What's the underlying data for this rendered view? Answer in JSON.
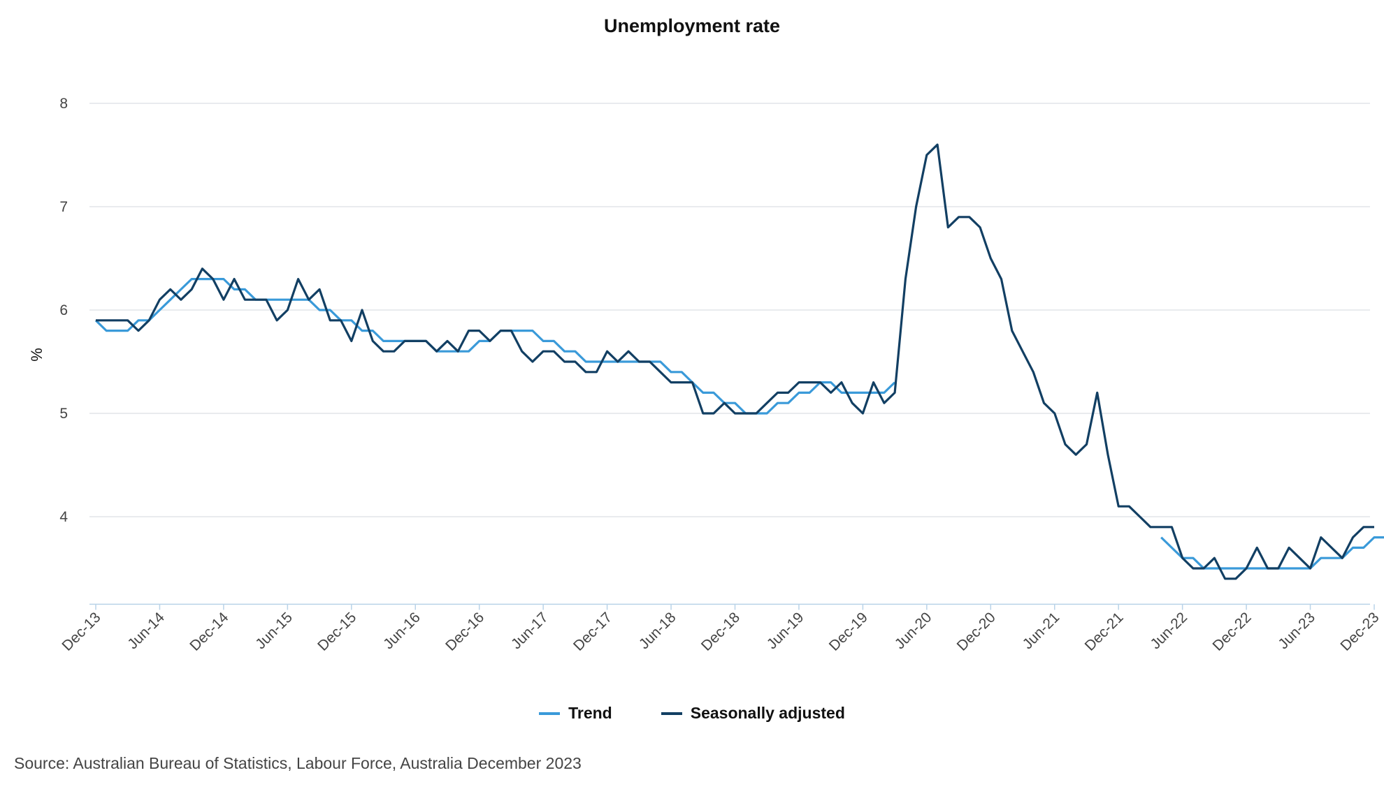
{
  "chart_data": {
    "type": "line",
    "title": "Unemployment rate",
    "xlabel": "",
    "ylabel": "%",
    "ylim": [
      3.2,
      8
    ],
    "yticks": [
      4,
      5,
      6,
      7,
      8
    ],
    "grid": true,
    "legend_position": "bottom-center",
    "x_start": "Dec-13",
    "x_end": "Dec-23",
    "x_tick_labels": [
      "Dec-13",
      "Jun-14",
      "Dec-14",
      "Jun-15",
      "Dec-15",
      "Jun-16",
      "Dec-16",
      "Jun-17",
      "Dec-17",
      "Jun-18",
      "Dec-18",
      "Jun-19",
      "Dec-19",
      "Jun-20",
      "Dec-20",
      "Jun-21",
      "Dec-21",
      "Jun-22",
      "Dec-22",
      "Jun-23",
      "Dec-23"
    ],
    "series": [
      {
        "name": "Trend",
        "color": "#3A9AD9",
        "values": [
          5.9,
          5.8,
          5.8,
          5.8,
          5.9,
          5.9,
          6.0,
          6.1,
          6.2,
          6.3,
          6.3,
          6.3,
          6.3,
          6.2,
          6.2,
          6.1,
          6.1,
          6.1,
          6.1,
          6.1,
          6.1,
          6.0,
          6.0,
          5.9,
          5.9,
          5.8,
          5.8,
          5.7,
          5.7,
          5.7,
          5.7,
          5.7,
          5.6,
          5.6,
          5.6,
          5.6,
          5.7,
          5.7,
          5.8,
          5.8,
          5.8,
          5.8,
          5.7,
          5.7,
          5.6,
          5.6,
          5.5,
          5.5,
          5.5,
          5.5,
          5.5,
          5.5,
          5.5,
          5.5,
          5.4,
          5.4,
          5.3,
          5.2,
          5.2,
          5.1,
          5.1,
          5.0,
          5.0,
          5.0,
          5.1,
          5.1,
          5.2,
          5.2,
          5.3,
          5.3,
          5.2,
          5.2,
          5.2,
          5.2,
          5.2,
          5.3,
          null,
          null,
          null,
          null,
          null,
          null,
          null,
          null,
          null,
          null,
          null,
          null,
          null,
          null,
          null,
          null,
          null,
          null,
          null,
          null,
          null,
          null,
          null,
          null,
          3.8,
          3.7,
          3.6,
          3.6,
          3.5,
          3.5,
          3.5,
          3.5,
          3.5,
          3.5,
          3.5,
          3.5,
          3.5,
          3.5,
          3.5,
          3.6,
          3.6,
          3.6,
          3.7,
          3.7,
          3.8,
          3.8,
          3.8,
          3.8
        ]
      },
      {
        "name": "Seasonally adjusted",
        "color": "#123F63",
        "values": [
          5.9,
          5.9,
          5.9,
          5.9,
          5.8,
          5.9,
          6.1,
          6.2,
          6.1,
          6.2,
          6.4,
          6.3,
          6.1,
          6.3,
          6.1,
          6.1,
          6.1,
          5.9,
          6.0,
          6.3,
          6.1,
          6.2,
          5.9,
          5.9,
          5.7,
          6.0,
          5.7,
          5.6,
          5.6,
          5.7,
          5.7,
          5.7,
          5.6,
          5.7,
          5.6,
          5.8,
          5.8,
          5.7,
          5.8,
          5.8,
          5.6,
          5.5,
          5.6,
          5.6,
          5.5,
          5.5,
          5.4,
          5.4,
          5.6,
          5.5,
          5.6,
          5.5,
          5.5,
          5.4,
          5.3,
          5.3,
          5.3,
          5.0,
          5.0,
          5.1,
          5.0,
          5.0,
          5.0,
          5.1,
          5.2,
          5.2,
          5.3,
          5.3,
          5.3,
          5.2,
          5.3,
          5.1,
          5.0,
          5.3,
          5.1,
          5.2,
          6.3,
          7.0,
          7.5,
          7.6,
          6.8,
          6.9,
          6.9,
          6.8,
          6.5,
          6.3,
          5.8,
          5.6,
          5.4,
          5.1,
          5.0,
          4.7,
          4.6,
          4.7,
          5.2,
          4.6,
          4.1,
          4.1,
          4.0,
          3.9,
          3.9,
          3.9,
          3.6,
          3.5,
          3.5,
          3.6,
          3.4,
          3.4,
          3.5,
          3.7,
          3.5,
          3.5,
          3.7,
          3.6,
          3.5,
          3.8,
          3.7,
          3.6,
          3.8,
          3.9,
          3.9
        ]
      }
    ]
  },
  "legend": {
    "items": [
      {
        "label": "Trend",
        "color": "#3A9AD9"
      },
      {
        "label": "Seasonally adjusted",
        "color": "#123F63"
      }
    ]
  },
  "source": "Source: Australian Bureau of Statistics, Labour Force, Australia December 2023"
}
